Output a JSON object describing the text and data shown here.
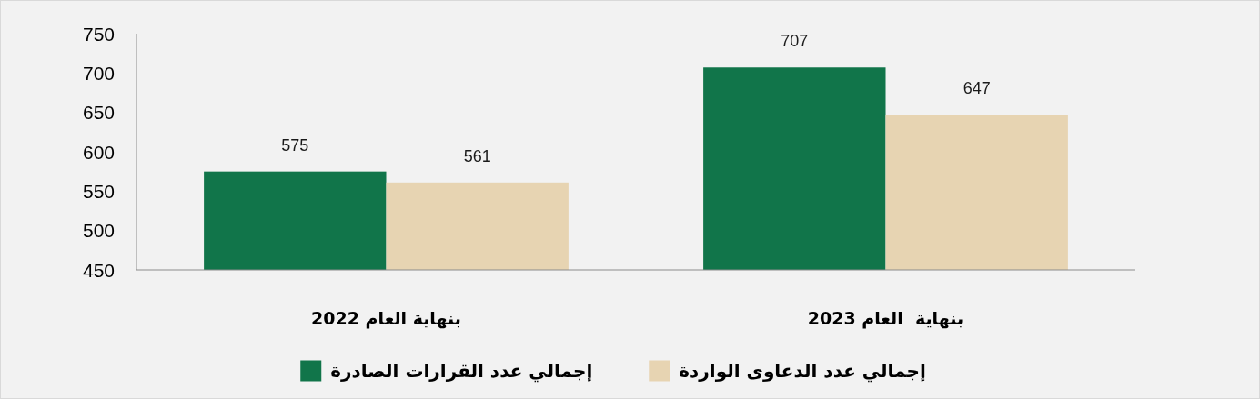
{
  "chart_data": {
    "type": "bar",
    "categories": [
      "بنهاية العام 2022",
      "بنهاية  العام 2023"
    ],
    "series": [
      {
        "name": "إجمالي عدد القرارات الصادرة",
        "color": "#11754a",
        "values": [
          575,
          707
        ]
      },
      {
        "name": "إجمالي عدد الدعاوى الواردة",
        "color": "#e7d4b2",
        "values": [
          561,
          647
        ]
      }
    ],
    "ylim": [
      450,
      750
    ],
    "yticks": [
      450,
      500,
      550,
      600,
      650,
      700,
      750
    ],
    "grid": false,
    "legend": "bottom",
    "data_labels": true
  }
}
